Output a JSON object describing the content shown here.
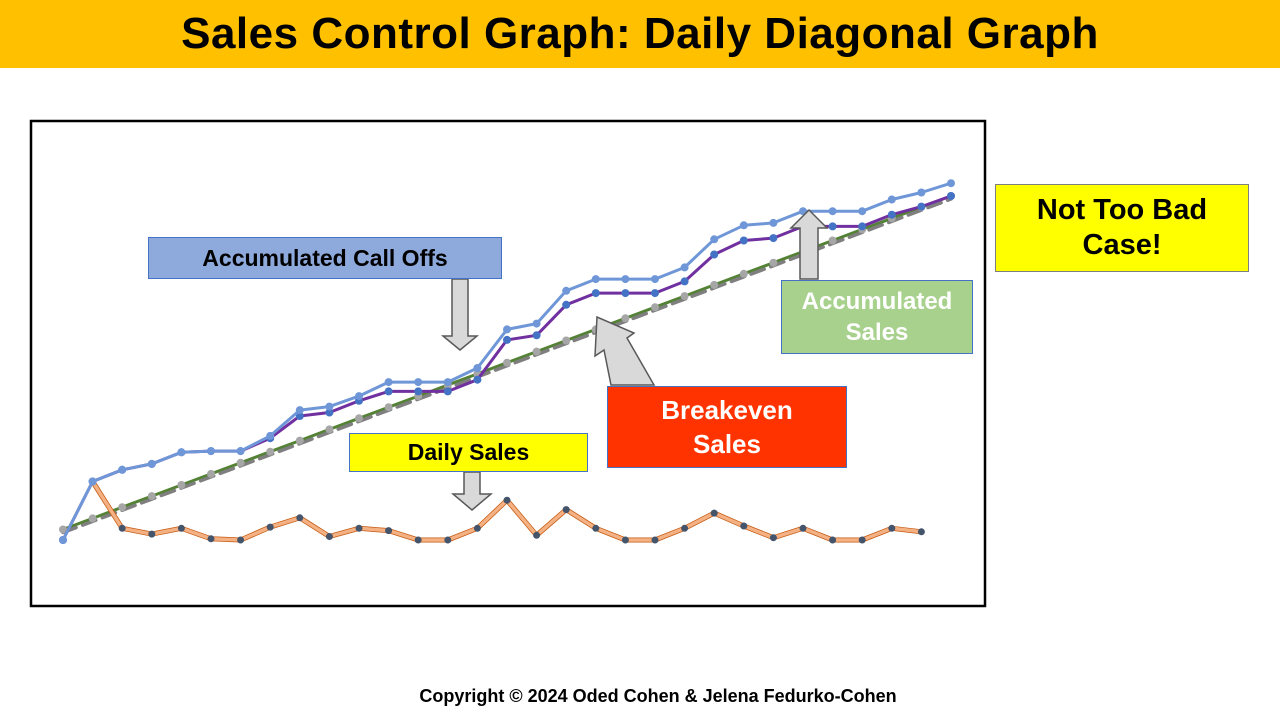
{
  "title": "Sales Control Graph: Daily Diagonal Graph",
  "callouts": {
    "call_offs": "Accumulated Call Offs",
    "daily_sales": "Daily Sales",
    "accumulated_sales_1": "Accumulated",
    "accumulated_sales_2": "Sales",
    "breakeven_1": "Breakeven",
    "breakeven_2": "Sales",
    "case_1": "Not Too Bad",
    "case_2": "Case!"
  },
  "copyright": "Copyright  © 2024 Oded Cohen & Jelena Fedurko-Cohen",
  "colors": {
    "title_bar": "#FFC000",
    "call_offs": "#6F97D8",
    "accumulated_sales": "#7030A0",
    "breakeven": "#548235",
    "breakeven_dashed": "#7F7F7F",
    "daily_sales": "#F4B183",
    "marker": "#4472C4"
  },
  "chart_data": {
    "type": "line",
    "days": 31,
    "ylim": [
      0,
      32
    ],
    "series": [
      {
        "key": "call_offs",
        "values": [
          0,
          5,
          6,
          6.5,
          7.5,
          7.6,
          7.6,
          8.9,
          11.1,
          11.4,
          12.3,
          13.5,
          13.5,
          13.5,
          14.7,
          18.0,
          18.5,
          21.3,
          22.3,
          22.3,
          22.3,
          23.3,
          25.7,
          26.9,
          27.1,
          28.1,
          28.1,
          28.1,
          29.1,
          29.7,
          30.5
        ]
      },
      {
        "key": "accumulated_sales",
        "values": [
          0,
          5,
          6,
          6.5,
          7.5,
          7.6,
          7.6,
          8.7,
          10.6,
          10.9,
          11.9,
          12.7,
          12.7,
          12.7,
          13.7,
          17.1,
          17.5,
          20.1,
          21.1,
          21.1,
          21.1,
          22.1,
          24.4,
          25.6,
          25.8,
          26.8,
          26.8,
          26.8,
          27.8,
          28.5,
          29.4
        ]
      },
      {
        "key": "breakeven",
        "values": [
          0.9,
          1.85,
          2.8,
          3.75,
          4.7,
          5.65,
          6.6,
          7.55,
          8.5,
          9.45,
          10.4,
          11.35,
          12.3,
          13.25,
          14.2,
          15.15,
          16.1,
          17.05,
          18.0,
          18.95,
          19.9,
          20.85,
          21.8,
          22.75,
          23.7,
          24.65,
          25.6,
          26.55,
          27.5,
          28.45,
          29.4
        ]
      },
      {
        "key": "daily_sales",
        "values": [
          null,
          5,
          1,
          0.5,
          1,
          0.1,
          0,
          1.1,
          1.9,
          0.3,
          1.0,
          0.8,
          0,
          0,
          1.0,
          3.4,
          0.4,
          2.6,
          1.0,
          0,
          0,
          1.0,
          2.3,
          1.2,
          0.2,
          1.0,
          0,
          0,
          1.0,
          0.7,
          null
        ]
      }
    ]
  }
}
